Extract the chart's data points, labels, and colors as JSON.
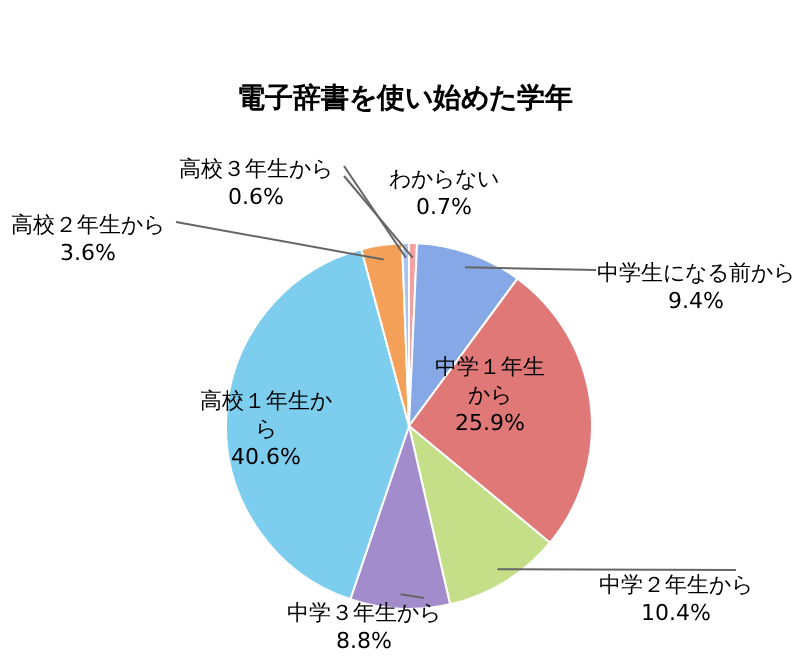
{
  "chart_data": {
    "type": "pie",
    "title": "電子辞書を使い始めた学年",
    "categories": [
      "わからない",
      "中学生になる前から",
      "中学１年生から",
      "中学２年生から",
      "中学３年生から",
      "高校１年生から",
      "高校２年生から",
      "高校３年生から"
    ],
    "values": [
      0.7,
      9.4,
      25.9,
      10.4,
      8.8,
      40.6,
      3.6,
      0.6
    ],
    "value_labels": [
      "0.7%",
      "9.4%",
      "25.9%",
      "10.4%",
      "8.8%",
      "40.6%",
      "3.6%",
      "0.6%"
    ],
    "colors": [
      "#f2a0a0",
      "#86a8e6",
      "#e07878",
      "#c4df88",
      "#a38ccb",
      "#7ccdee",
      "#f5a058",
      "#a8c4ee"
    ],
    "legend": false
  }
}
